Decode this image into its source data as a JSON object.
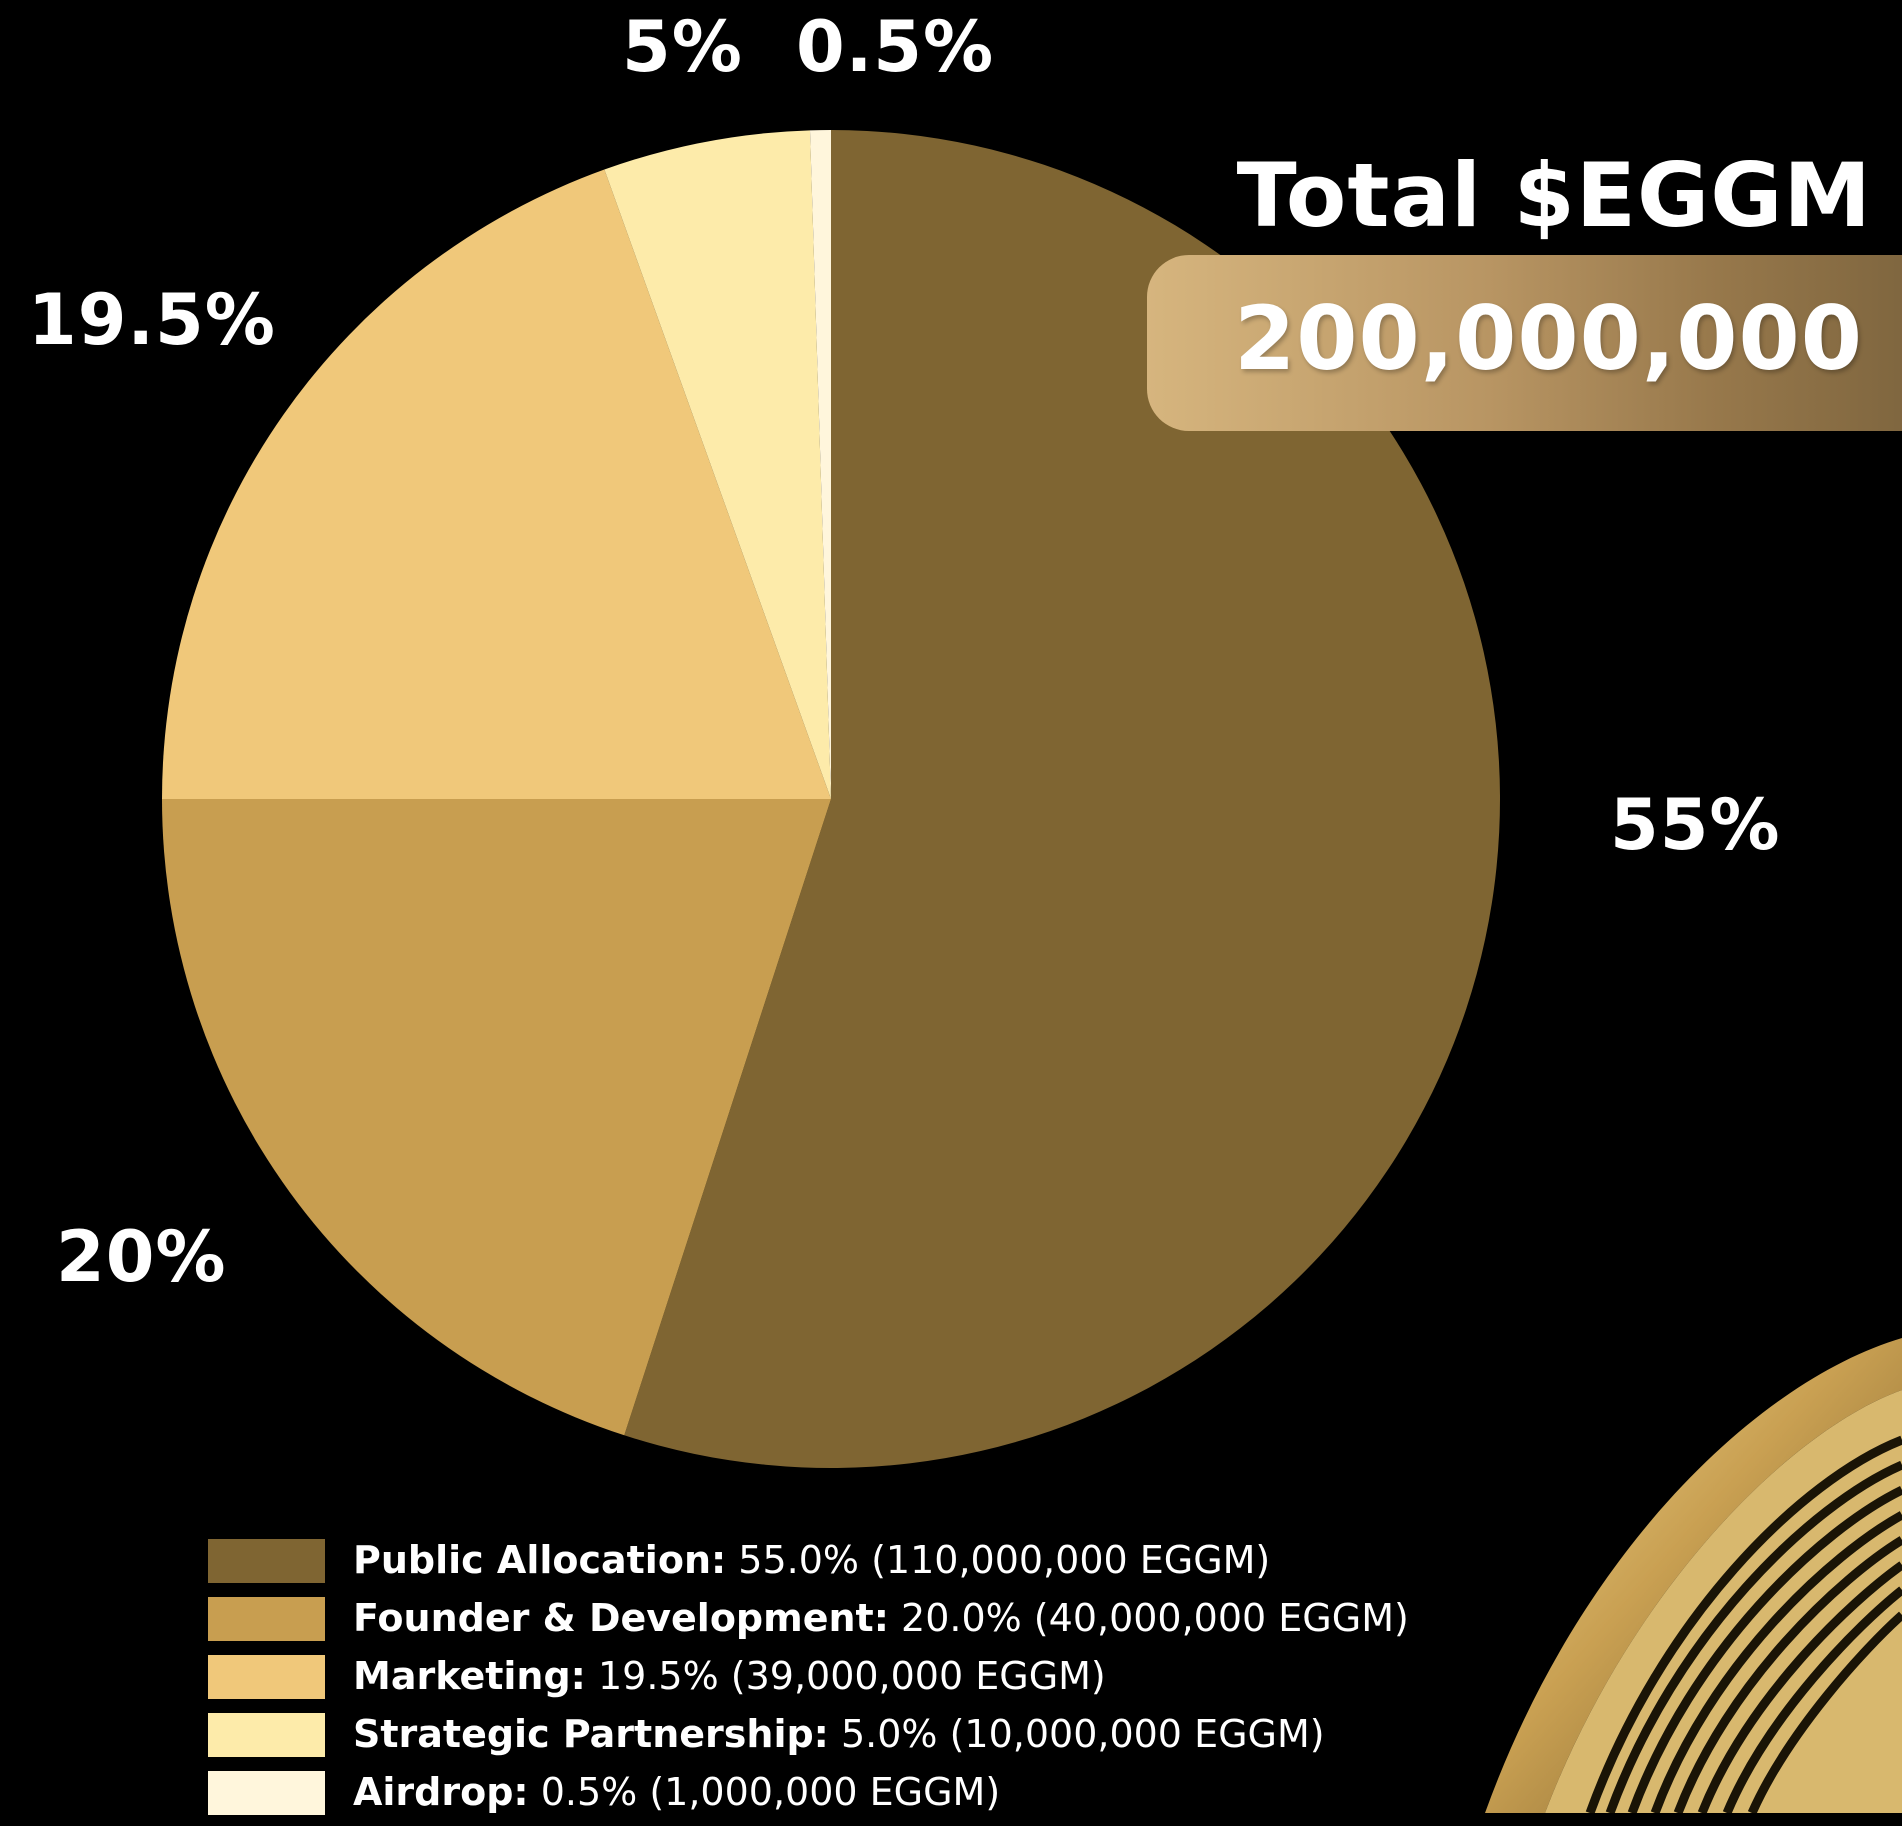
{
  "chart_data": {
    "type": "pie",
    "start_angle_deg": 0,
    "direction": "clockwise",
    "slices": [
      {
        "value": 55.0,
        "label": "55%",
        "name": "Public Allocation",
        "legend_detail": "55.0% (110,000,000 EGGM)",
        "color": "#7f6532"
      },
      {
        "value": 20.0,
        "label": "20%",
        "name": "Founder & Development",
        "legend_detail": "20.0% (40,000,000 EGGM)",
        "color": "#c89e50"
      },
      {
        "value": 19.5,
        "label": "19.5%",
        "name": "Marketing",
        "legend_detail": "19.5% (39,000,000 EGGM)",
        "color": "#f0c87a"
      },
      {
        "value": 5.0,
        "label": "5%",
        "name": "Strategic Partnership",
        "legend_detail": "5.0% (10,000,000 EGGM)",
        "color": "#fdebaa"
      },
      {
        "value": 0.5,
        "label": "0.5%",
        "name": "Airdrop",
        "legend_detail": "0.5% (1,000,000 EGGM)",
        "color": "#fff6dc"
      }
    ]
  },
  "total": {
    "title": "Total $EGGM",
    "value": "200,000,000"
  },
  "legend": [
    {
      "name": "Public Allocation:",
      "detail": "55.0% (110,000,000 EGGM)"
    },
    {
      "name": "Founder & Development:",
      "detail": "20.0% (40,000,000 EGGM)"
    },
    {
      "name": "Marketing:",
      "detail": "19.5% (39,000,000 EGGM)"
    },
    {
      "name": "Strategic Partnership:",
      "detail": "5.0% (10,000,000 EGGM)"
    },
    {
      "name": "Airdrop:",
      "detail": "0.5% (1,000,000 EGGM)"
    }
  ],
  "colors": {
    "background": "#000000",
    "text": "#ffffff"
  }
}
